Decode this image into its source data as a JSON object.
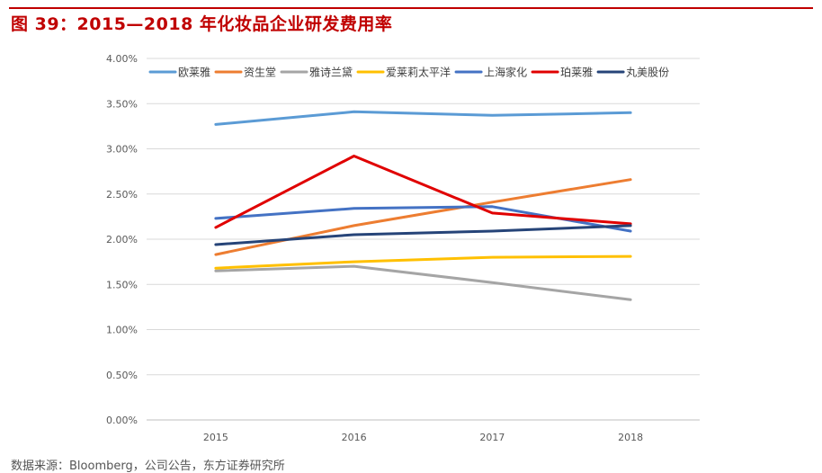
{
  "title": "图 39：2015—2018 年化妆品企业研发费用率",
  "source": "数据来源：Bloomberg，公司公告，东方证券研究所",
  "chart_data": {
    "type": "line",
    "title": "",
    "xlabel": "",
    "ylabel": "",
    "x": [
      "2015",
      "2016",
      "2017",
      "2018"
    ],
    "ylim": [
      0,
      4.0
    ],
    "yticks": [
      "0.00%",
      "0.50%",
      "1.00%",
      "1.50%",
      "2.00%",
      "2.50%",
      "3.00%",
      "3.50%",
      "4.00%"
    ],
    "grid": true,
    "legend_position": "top",
    "series": [
      {
        "name": "欧莱雅",
        "color": "#5b9bd5",
        "values": [
          3.27,
          3.41,
          3.37,
          3.4
        ]
      },
      {
        "name": "资生堂",
        "color": "#ed7d31",
        "values": [
          1.83,
          2.15,
          2.41,
          2.66
        ]
      },
      {
        "name": "雅诗兰黛",
        "color": "#a5a5a5",
        "values": [
          1.65,
          1.7,
          1.52,
          1.33
        ]
      },
      {
        "name": "爱莱莉太平洋",
        "color": "#ffc000",
        "values": [
          1.68,
          1.75,
          1.8,
          1.81
        ]
      },
      {
        "name": "上海家化",
        "color": "#4472c4",
        "values": [
          2.23,
          2.34,
          2.36,
          2.09
        ]
      },
      {
        "name": "珀莱雅",
        "color": "#e00000",
        "values": [
          2.13,
          2.92,
          2.29,
          2.17
        ]
      },
      {
        "name": "丸美股份",
        "color": "#264478",
        "values": [
          1.94,
          2.05,
          2.09,
          2.15
        ]
      }
    ]
  }
}
